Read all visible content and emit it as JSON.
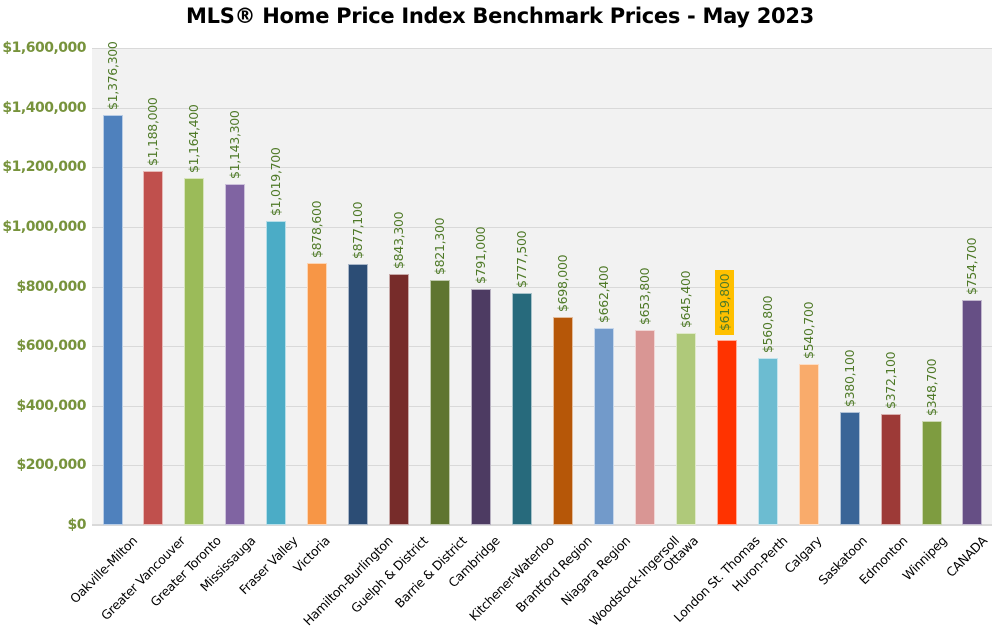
{
  "chart_data": {
    "type": "bar",
    "title": "MLS® Home Price Index Benchmark Prices - May 2023",
    "xlabel": "",
    "ylabel": "",
    "ylim": [
      0,
      1600000
    ],
    "yticks": [
      "$0",
      "$200,000",
      "$400,000",
      "$600,000",
      "$800,000",
      "$1,000,000",
      "$1,200,000",
      "$1,400,000",
      "$1,600,000"
    ],
    "grid": true,
    "legend": null,
    "categories": [
      "Oakville-Milton",
      "Greater Vancouver",
      "Greater Toronto",
      "Mississauga",
      "Fraser Valley",
      "Victoria",
      "Hamilton-Burlington",
      "Guelph & District",
      "Barrie & District",
      "Cambridge",
      "Kitchener-Waterloo",
      "Brantford Region",
      "Niagara Region",
      "Woodstock-Ingersoll",
      "Ottawa",
      "London St. Thomas",
      "Huron-Perth",
      "Calgary",
      "Saskatoon",
      "Edmonton",
      "Winnipeg",
      "CANADA"
    ],
    "values": [
      1376300,
      1188000,
      1164400,
      1143300,
      1019700,
      878600,
      877100,
      843300,
      821300,
      791000,
      777500,
      698000,
      662400,
      653800,
      645400,
      619800,
      560800,
      540700,
      380100,
      372100,
      348700,
      754700
    ],
    "value_labels": [
      "$1,376,300",
      "$1,188,000",
      "$1,164,400",
      "$1,143,300",
      "$1,019,700",
      "$878,600",
      "$877,100",
      "$843,300",
      "$821,300",
      "$791,000",
      "$777,500",
      "$698,000",
      "$662,400",
      "$653,800",
      "$645,400",
      "$619,800",
      "$560,800",
      "$540,700",
      "$380,100",
      "$372,100",
      "$348,700",
      "$754,700"
    ],
    "colors": [
      "#4f81bd",
      "#c0504d",
      "#9bbb59",
      "#8064a2",
      "#4bacc6",
      "#f79646",
      "#2c4d75",
      "#772c2a",
      "#5f7530",
      "#4d3b62",
      "#276a7c",
      "#b65708",
      "#729aca",
      "#d99694",
      "#afc97a",
      "#ff3300",
      "#6cbcd1",
      "#f9ab6b",
      "#3a6597",
      "#9d3a37",
      "#7e9c40",
      "#664f85"
    ],
    "highlighted_index": 15,
    "highlight_color": "#ffc000"
  },
  "colors": {
    "axis_text": "#77933c",
    "value_text": "#4f7a28",
    "plot_bg": "#f2f2f2",
    "grid": "#d9d9d9"
  }
}
